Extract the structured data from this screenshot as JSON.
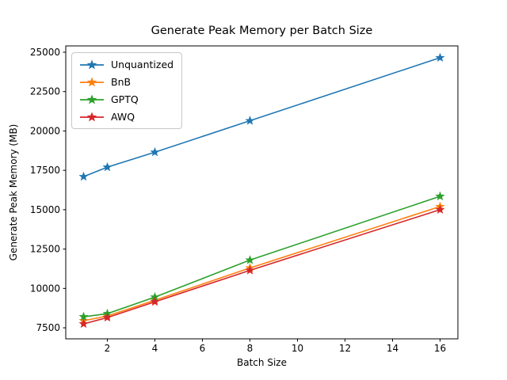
{
  "chart_data": {
    "type": "line",
    "title": "Generate Peak Memory per Batch Size",
    "xlabel": "Batch Size",
    "ylabel": "Generate Peak Memory (MB)",
    "x": [
      1,
      2,
      4,
      8,
      16
    ],
    "series": [
      {
        "name": "Unquantized",
        "color": "#1f77b4",
        "values": [
          17100,
          17700,
          18650,
          20650,
          24650
        ]
      },
      {
        "name": "BnB",
        "color": "#ff7f0e",
        "values": [
          7950,
          8250,
          9250,
          11300,
          15200
        ]
      },
      {
        "name": "GPTQ",
        "color": "#2ca02c",
        "values": [
          8200,
          8400,
          9450,
          11800,
          15850
        ]
      },
      {
        "name": "AWQ",
        "color": "#d62728",
        "values": [
          7750,
          8150,
          9150,
          11150,
          15000
        ]
      }
    ],
    "xticks": [
      2,
      4,
      6,
      8,
      10,
      12,
      14,
      16
    ],
    "yticks": [
      7500,
      10000,
      12500,
      15000,
      17500,
      20000,
      22500,
      25000
    ],
    "xlim": [
      0.25,
      16.75
    ],
    "ylim": [
      6800,
      25400
    ],
    "grid": false,
    "legend_position": "upper left",
    "marker": "star",
    "axis_color": "#000000",
    "background": "#ffffff"
  }
}
